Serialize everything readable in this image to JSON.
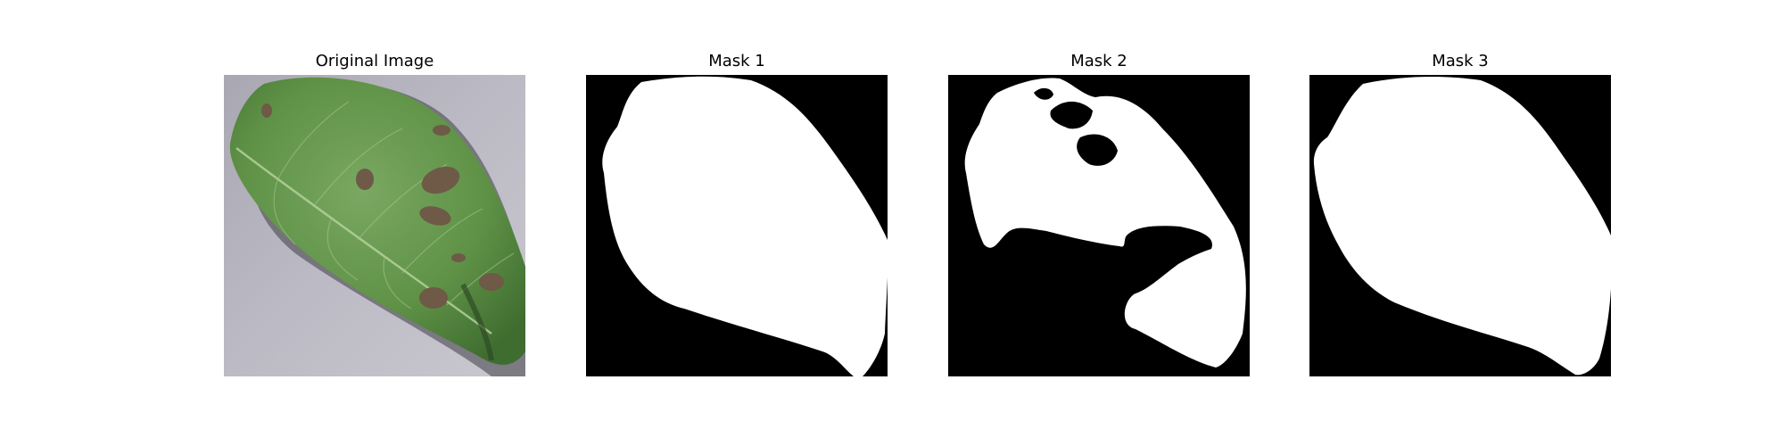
{
  "figure": {
    "panels": [
      {
        "title": "Original Image",
        "content": "photo-of-leaf"
      },
      {
        "title": "Mask 1",
        "content": "binary-mask"
      },
      {
        "title": "Mask 2",
        "content": "binary-mask"
      },
      {
        "title": "Mask 3",
        "content": "binary-mask"
      }
    ],
    "colors": {
      "background": "#ffffff",
      "mask_foreground": "#ffffff",
      "mask_background": "#000000",
      "leaf_green": "#5e9146",
      "surface_gray": "#b3b1bb",
      "lesion_brown": "#6e5a46"
    }
  }
}
